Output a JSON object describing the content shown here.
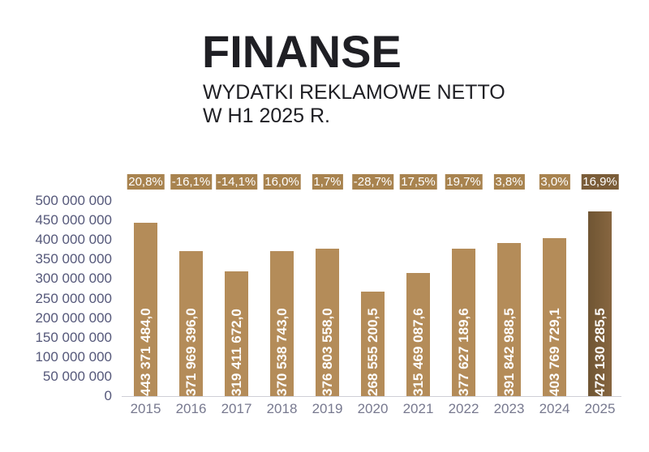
{
  "header": {
    "title": "FINANSE",
    "subtitle_line1": "WYDATKI REKLAMOWE NETTO",
    "subtitle_line2": "W H1 2025 R."
  },
  "colors": {
    "bar": "#b48c59",
    "bar_highlight": "#7a5c38",
    "pct_badge": "#a8834f",
    "axis_text": "#55587a"
  },
  "chart_data": {
    "type": "bar",
    "title": "FINANSE — WYDATKI REKLAMOWE NETTO W H1 2025 R.",
    "xlabel": "",
    "ylabel": "",
    "ylim": [
      0,
      500000000
    ],
    "y_ticks": [
      "0",
      "50 000 000",
      "100 000 000",
      "150 000 000",
      "200 000 000",
      "250 000 000",
      "300 000 000",
      "350 000 000",
      "400 000 000",
      "450 000 000",
      "500 000 000"
    ],
    "categories": [
      "2015",
      "2016",
      "2017",
      "2018",
      "2019",
      "2020",
      "2021",
      "2022",
      "2023",
      "2024",
      "2025"
    ],
    "values": [
      443371484.0,
      371969396.0,
      319411672.0,
      370538743.0,
      376803558.0,
      268555200.5,
      315469087.6,
      377627189.6,
      391842988.5,
      403769729.1,
      472130285.5
    ],
    "value_labels": [
      "443 371 484,0",
      "371 969 396,0",
      "319 411 672,0",
      "370 538 743,0",
      "376 803 558,0",
      "268 555 200,5",
      "315 469 087,6",
      "377 627 189,6",
      "391 842 988,5",
      "403 769 729,1",
      "472 130 285,5"
    ],
    "change_labels": [
      "20,8%",
      "-16,1%",
      "-14,1%",
      "16,0%",
      "1,7%",
      "-28,7%",
      "17,5%",
      "19,7%",
      "3,8%",
      "3,0%",
      "16,9%"
    ],
    "grid": false,
    "legend": null
  }
}
